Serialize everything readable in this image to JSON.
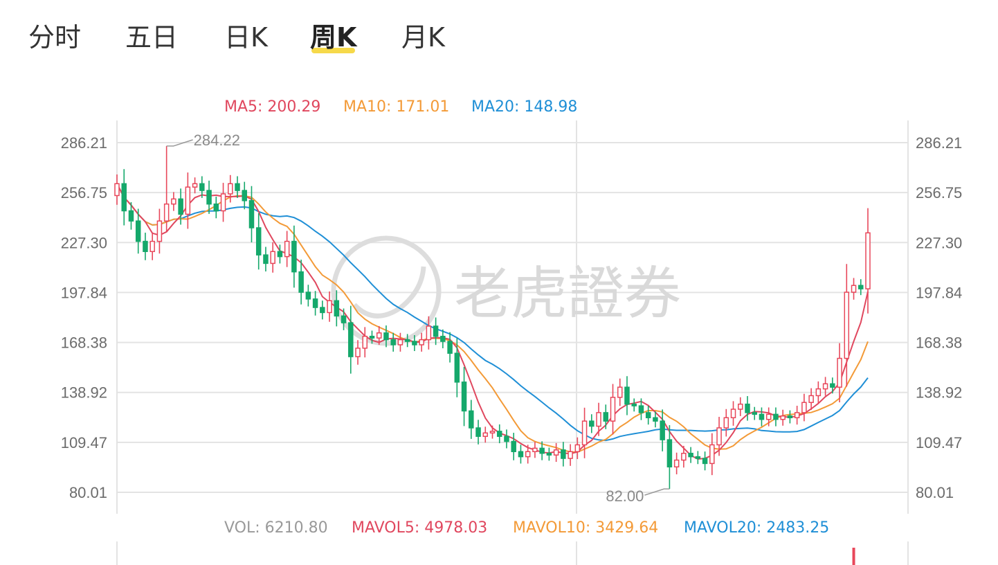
{
  "tabs": [
    {
      "label": "分时",
      "active": false
    },
    {
      "label": "五日",
      "active": false
    },
    {
      "label": "日K",
      "active": false
    },
    {
      "label": "周K",
      "active": true
    },
    {
      "label": "月K",
      "active": false
    }
  ],
  "ma_legend": {
    "ma5": "MA5: 200.29",
    "ma10": "MA10: 171.01",
    "ma20": "MA20: 148.98"
  },
  "vol_legend": {
    "vol": "VOL: 6210.80",
    "mavol5": "MAVOL5: 4978.03",
    "mavol10": "MAVOL10: 3429.64",
    "mavol20": "MAVOL20: 2483.25"
  },
  "watermark": {
    "text": "老虎證券"
  },
  "colors": {
    "up": "#e8475a",
    "down": "#15a86b",
    "ma5": "#e0475e",
    "ma10": "#f39a37",
    "ma20": "#1f8fd6",
    "vol": "#999999",
    "grid": "#e3e3e3",
    "tab_underline": "#f6d94a"
  },
  "chart_data": {
    "type": "candlestick",
    "period": "weekly",
    "y_ticks": [
      286.21,
      256.75,
      227.3,
      197.84,
      168.38,
      138.92,
      109.47,
      80.01
    ],
    "y_tick_labels": [
      "286.21",
      "256.75",
      "227.30",
      "197.84",
      "168.38",
      "138.92",
      "109.47",
      "80.01"
    ],
    "ylim": [
      72,
      298
    ],
    "max_marker": {
      "value": 284.22,
      "label": "284.22"
    },
    "min_marker": {
      "value": 82.0,
      "label": "82.00"
    },
    "close_series": [
      262,
      246,
      240,
      228,
      222,
      228,
      240,
      250,
      253,
      244,
      260,
      262,
      258,
      250,
      246,
      256,
      262,
      258,
      252,
      236,
      220,
      215,
      222,
      219,
      228,
      210,
      198,
      194,
      189,
      186,
      193,
      184,
      180,
      160,
      165,
      172,
      171,
      174,
      170,
      167,
      170,
      169,
      167,
      170,
      178,
      172,
      169,
      162,
      145,
      128,
      118,
      113,
      115,
      116,
      113,
      110,
      104,
      101,
      104,
      106,
      103,
      102,
      105,
      100,
      104,
      108,
      122,
      119,
      127,
      122,
      136,
      142,
      132,
      131,
      127,
      124,
      122,
      111,
      95,
      99,
      103,
      101,
      100,
      97,
      108,
      118,
      124,
      129,
      132,
      127,
      126,
      123,
      126,
      123,
      125,
      124,
      127,
      133,
      137,
      141,
      144,
      142,
      159,
      198,
      202,
      200,
      233
    ],
    "ma5": {
      "last": 200.29
    },
    "ma10": {
      "last": 171.01
    },
    "ma20": {
      "last": 148.98
    },
    "volume": {
      "vol": 6210.8,
      "mavol5": 4978.03,
      "mavol10": 3429.64,
      "mavol20": 2483.25
    }
  }
}
